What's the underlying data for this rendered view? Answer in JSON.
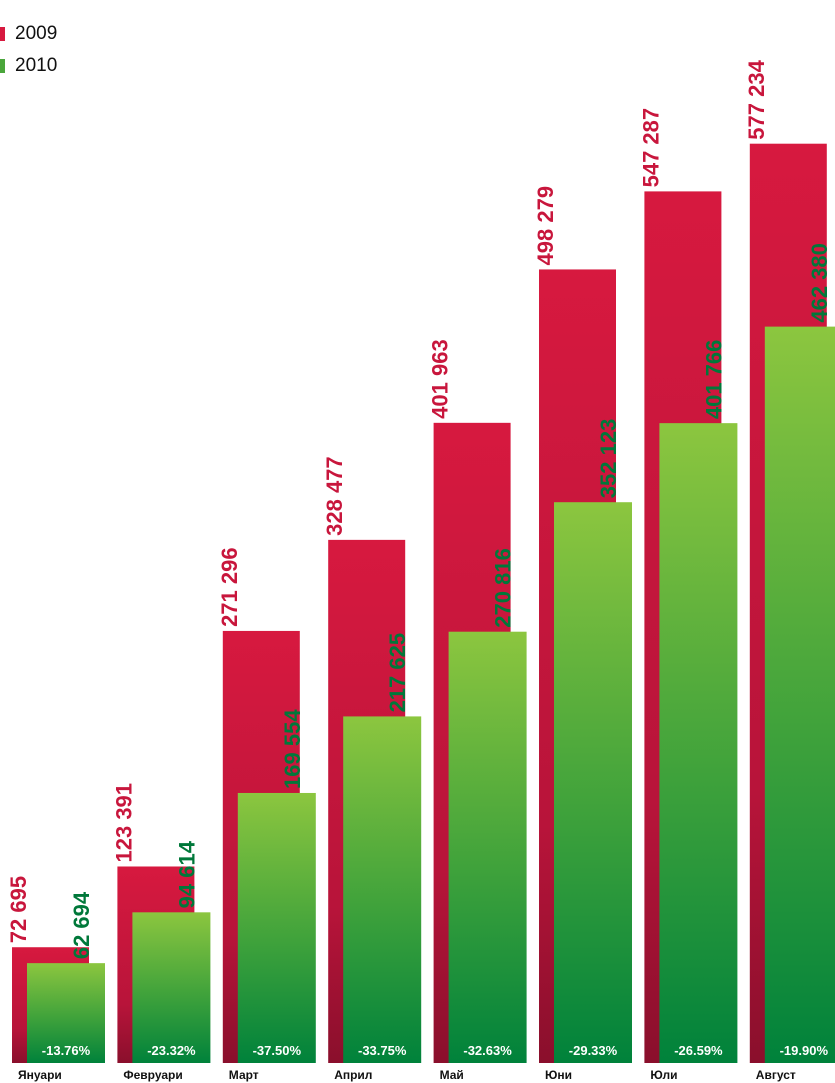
{
  "chart_data": {
    "type": "bar",
    "categories": [
      "Януари",
      "Февруари",
      "Март",
      "Април",
      "Май",
      "Юни",
      "Юли",
      "Август"
    ],
    "series": [
      {
        "name": "2009",
        "values": [
          72695,
          123391,
          271296,
          328477,
          401963,
          498279,
          547287,
          577234
        ],
        "labels": [
          "72 695",
          "123 391",
          "271 296",
          "328 477",
          "401 963",
          "498 279",
          "547 287",
          "577 234"
        ],
        "color": "#d7193f"
      },
      {
        "name": "2010",
        "values": [
          62694,
          94614,
          169554,
          217625,
          270816,
          352123,
          401766,
          462380
        ],
        "labels": [
          "62 694",
          "94 614",
          "169 554",
          "217 625",
          "270 816",
          "352 123",
          "401 766",
          "462 380"
        ],
        "color": "#7cbd3f"
      }
    ],
    "change_labels": [
      "-13.76%",
      "-23.32%",
      "-37.50%",
      "-33.75%",
      "-32.63%",
      "-29.33%",
      "-26.59%",
      "-19.90%"
    ],
    "colors": {
      "series_2009_top": "#d7193f",
      "series_2009_bottom": "#8a0f2c",
      "series_2010_top": "#8cc63f",
      "series_2010_bottom": "#00823b",
      "label_2009": "#c8163c",
      "label_2010": "#00783a"
    },
    "legend": "top-left",
    "grid": false,
    "ylim": [
      0,
      600000
    ]
  }
}
